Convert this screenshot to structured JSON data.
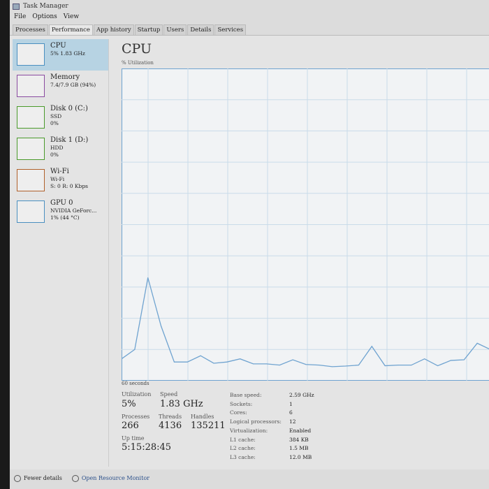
{
  "window": {
    "title": "Task Manager"
  },
  "menu": [
    "File",
    "Options",
    "View"
  ],
  "tabs": [
    {
      "label": "Processes"
    },
    {
      "label": "Performance",
      "active": true
    },
    {
      "label": "App history"
    },
    {
      "label": "Startup"
    },
    {
      "label": "Users"
    },
    {
      "label": "Details"
    },
    {
      "label": "Services"
    }
  ],
  "sidebar": [
    {
      "name": "CPU",
      "sub1": "5% 1.83 GHz",
      "sub2": "",
      "color": "#4a8fc0",
      "selected": true
    },
    {
      "name": "Memory",
      "sub1": "7.4/7.9 GB (94%)",
      "sub2": "",
      "color": "#8a4aa0"
    },
    {
      "name": "Disk 0 (C:)",
      "sub1": "SSD",
      "sub2": "0%",
      "color": "#4a9a2a"
    },
    {
      "name": "Disk 1 (D:)",
      "sub1": "HDD",
      "sub2": "0%",
      "color": "#4a9a2a"
    },
    {
      "name": "Wi-Fi",
      "sub1": "Wi-Fi",
      "sub2": "S: 0 R: 0 Kbps",
      "color": "#b0602a"
    },
    {
      "name": "GPU 0",
      "sub1": "NVIDIA GeForc...",
      "sub2": "1% (44 °C)",
      "color": "#4a8fc0"
    }
  ],
  "main": {
    "title": "CPU",
    "y_label": "% Utilization",
    "x_label": "60 seconds"
  },
  "chart_data": {
    "type": "line",
    "ylim": [
      0,
      100
    ],
    "xlim": [
      60,
      0
    ],
    "grid": true,
    "color": "#6fa3d0",
    "values": [
      7,
      10,
      33,
      17.5,
      6,
      6,
      8,
      5.6,
      6,
      7,
      5.4,
      5.4,
      5,
      6.7,
      5.2,
      5,
      4.5,
      4.7,
      5,
      11,
      4.8,
      5,
      5,
      7,
      4.8,
      6.5,
      6.7,
      12,
      10
    ]
  },
  "stats": {
    "utilization_label": "Utilization",
    "utilization": "5%",
    "speed_label": "Speed",
    "speed": "1.83 GHz",
    "processes_label": "Processes",
    "processes": "266",
    "threads_label": "Threads",
    "threads": "4136",
    "handles_label": "Handles",
    "handles": "135211",
    "uptime_label": "Up time",
    "uptime": "5:15:28:45"
  },
  "specs": [
    {
      "k": "Base speed:",
      "v": "2.59 GHz"
    },
    {
      "k": "Sockets:",
      "v": "1"
    },
    {
      "k": "Cores:",
      "v": "6"
    },
    {
      "k": "Logical processors:",
      "v": "12"
    },
    {
      "k": "Virtualization:",
      "v": "Enabled"
    },
    {
      "k": "L1 cache:",
      "v": "384 KB"
    },
    {
      "k": "L2 cache:",
      "v": "1.5 MB"
    },
    {
      "k": "L3 cache:",
      "v": "12.0 MB"
    }
  ],
  "footer": {
    "fewer": "Fewer details",
    "monitor": "Open Resource Monitor"
  }
}
